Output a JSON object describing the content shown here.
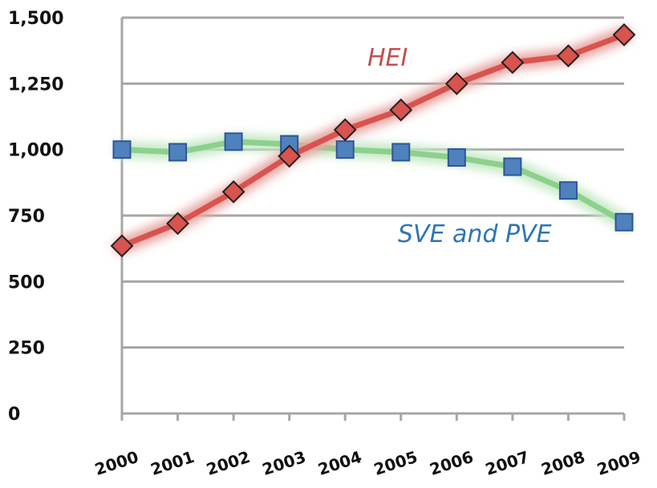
{
  "chart_data": {
    "type": "line",
    "x": [
      "2000",
      "2001",
      "2002",
      "2003",
      "2004",
      "2005",
      "2006",
      "2007",
      "2008",
      "2009"
    ],
    "yticks": [
      "0",
      "250",
      "500",
      "750",
      "1,000",
      "1,250",
      "1,500"
    ],
    "ylim": [
      0,
      1500
    ],
    "grid": true,
    "series": [
      {
        "name": "HEI",
        "color": "#d9534f",
        "glow": "#e7a4a1",
        "marker": "diamond",
        "marker_fill": "#d9534f",
        "values": [
          635,
          720,
          840,
          975,
          1075,
          1150,
          1250,
          1330,
          1355,
          1435
        ]
      },
      {
        "name": "SVE and PVE",
        "color": "#8cd18c",
        "glow": "#c4e8c4",
        "marker": "square",
        "marker_fill": "#4f81bd",
        "values": [
          1000,
          990,
          1030,
          1020,
          1000,
          990,
          970,
          935,
          845,
          725
        ]
      }
    ],
    "labels": [
      {
        "text": "HEI",
        "color": "#c0504d"
      },
      {
        "text": "SVE and PVE",
        "color": "#2e75b6"
      }
    ]
  }
}
